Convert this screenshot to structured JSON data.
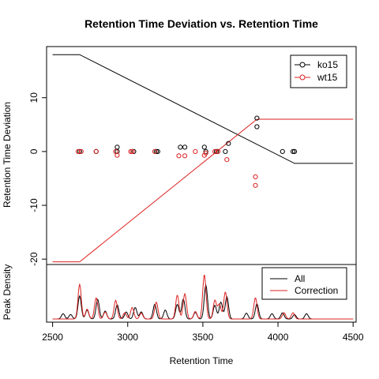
{
  "chart_data": [
    {
      "type": "scatter",
      "title": "Retention Time Deviation vs. Retention Time",
      "xlabel": "Retention Time",
      "ylabel": "Retention Time Deviation",
      "xlim": [
        2460,
        4520
      ],
      "ylim": [
        -21,
        19.5
      ],
      "xticks": [
        "2500",
        "3000",
        "3500",
        "4000",
        "4500"
      ],
      "yticks": [
        "10",
        "0",
        "-10",
        "-20"
      ],
      "ytick_values": [
        10,
        0,
        -10,
        -20
      ],
      "legend": {
        "position": "top-right",
        "entries": [
          "ko15",
          "wt15"
        ]
      },
      "series": [
        {
          "name": "ko15",
          "color": "#000000",
          "points": [
            [
              2680,
              0
            ],
            [
              2790,
              0
            ],
            [
              2930,
              0.8
            ],
            [
              2930,
              0
            ],
            [
              3040,
              0
            ],
            [
              3190,
              0
            ],
            [
              3200,
              0
            ],
            [
              3350,
              0.8
            ],
            [
              3380,
              0.8
            ],
            [
              3510,
              0.8
            ],
            [
              3520,
              0
            ],
            [
              3590,
              0
            ],
            [
              3600,
              0
            ],
            [
              3650,
              0
            ],
            [
              3670,
              1.5
            ],
            [
              3860,
              6.2
            ],
            [
              3860,
              4.6
            ],
            [
              4030,
              0
            ],
            [
              4100,
              0
            ],
            [
              4110,
              0
            ]
          ],
          "line": [
            [
              2500,
              18
            ],
            [
              2680,
              18
            ],
            [
              4110,
              -2.2
            ],
            [
              4500,
              -2.2
            ]
          ]
        },
        {
          "name": "wt15",
          "color": "#dd2222",
          "points": [
            [
              2670,
              0
            ],
            [
              2690,
              0
            ],
            [
              2790,
              0
            ],
            [
              2920,
              0
            ],
            [
              2930,
              -0.7
            ],
            [
              3020,
              0
            ],
            [
              3030,
              0
            ],
            [
              3180,
              0
            ],
            [
              3340,
              -0.8
            ],
            [
              3380,
              -0.8
            ],
            [
              3450,
              0
            ],
            [
              3510,
              -0.7
            ],
            [
              3520,
              -0.3
            ],
            [
              3580,
              0
            ],
            [
              3600,
              0
            ],
            [
              3660,
              -1.5
            ],
            [
              3850,
              -4.7
            ],
            [
              3850,
              -6.3
            ]
          ],
          "line": [
            [
              2500,
              -20.5
            ],
            [
              2680,
              -20.5
            ],
            [
              3860,
              6
            ],
            [
              4500,
              6
            ]
          ]
        }
      ]
    },
    {
      "type": "line",
      "ylabel": "Peak Density",
      "legend": {
        "position": "top-right",
        "entries": [
          "All",
          "Correction"
        ]
      },
      "series": [
        {
          "name": "All",
          "color": "#000000",
          "peaks": [
            [
              2570,
              1.2
            ],
            [
              2620,
              1.0
            ],
            [
              2680,
              5.2
            ],
            [
              2730,
              2.0
            ],
            [
              2800,
              4.4
            ],
            [
              2850,
              1.8
            ],
            [
              2930,
              3.2
            ],
            [
              2990,
              1.6
            ],
            [
              3050,
              2.6
            ],
            [
              3090,
              1.6
            ],
            [
              3180,
              3.3
            ],
            [
              3250,
              2.0
            ],
            [
              3330,
              3.3
            ],
            [
              3370,
              4.5
            ],
            [
              3450,
              1.5
            ],
            [
              3520,
              7.6
            ],
            [
              3580,
              3.1
            ],
            [
              3620,
              3.8
            ],
            [
              3660,
              5.0
            ],
            [
              3790,
              1.3
            ],
            [
              3860,
              3.4
            ],
            [
              3960,
              1.2
            ],
            [
              4030,
              1.4
            ],
            [
              4110,
              1.0
            ],
            [
              4190,
              1.2
            ]
          ]
        },
        {
          "name": "Correction",
          "color": "#dd2222",
          "peaks": [
            [
              2680,
              7.8
            ],
            [
              2730,
              2.2
            ],
            [
              2790,
              4.8
            ],
            [
              2850,
              1.6
            ],
            [
              2920,
              4.2
            ],
            [
              2980,
              1.4
            ],
            [
              3030,
              2.6
            ],
            [
              3090,
              1.3
            ],
            [
              3190,
              3.8
            ],
            [
              3330,
              5.4
            ],
            [
              3380,
              5.7
            ],
            [
              3450,
              1.7
            ],
            [
              3510,
              10.0
            ],
            [
              3580,
              4.2
            ],
            [
              3610,
              3.3
            ],
            [
              3650,
              6.1
            ],
            [
              3850,
              4.8
            ],
            [
              4040,
              1.4
            ],
            [
              4100,
              1.4
            ]
          ]
        }
      ]
    }
  ]
}
